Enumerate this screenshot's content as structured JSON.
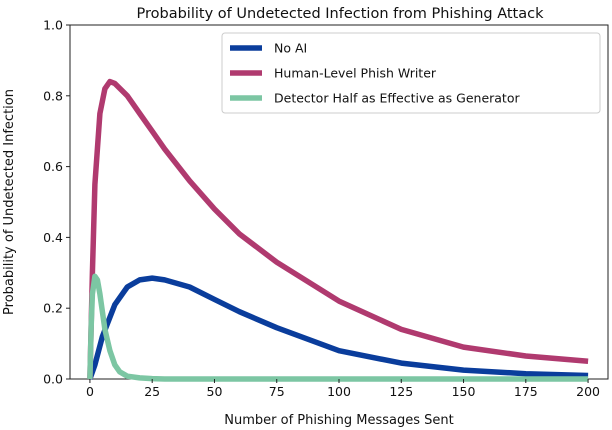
{
  "chart_data": {
    "type": "line",
    "title": "Probability of Undetected Infection from Phishing Attack",
    "xlabel": "Number of Phishing Messages Sent",
    "ylabel": "Probability of Undetected Infection",
    "xlim": [
      -8,
      208
    ],
    "ylim": [
      0,
      1.0
    ],
    "xticks": [
      0,
      25,
      50,
      75,
      100,
      125,
      150,
      175,
      200
    ],
    "yticks": [
      0.0,
      0.2,
      0.4,
      0.6,
      0.8,
      1.0
    ],
    "ytick_labels": [
      "0.0",
      "0.2",
      "0.4",
      "0.6",
      "0.8",
      "1.0"
    ],
    "grid": false,
    "legend_position": "top-right",
    "series": [
      {
        "name": "No AI",
        "color": "#0a3d9c",
        "x": [
          0,
          2,
          5,
          10,
          15,
          20,
          25,
          30,
          40,
          50,
          60,
          75,
          100,
          125,
          150,
          175,
          200
        ],
        "y": [
          0.0,
          0.04,
          0.12,
          0.21,
          0.26,
          0.28,
          0.285,
          0.28,
          0.26,
          0.225,
          0.19,
          0.145,
          0.08,
          0.045,
          0.025,
          0.015,
          0.01
        ]
      },
      {
        "name": "Human-Level Phish Writer",
        "color": "#b03a6f",
        "x": [
          0,
          1,
          2,
          4,
          6,
          8,
          10,
          15,
          20,
          25,
          30,
          40,
          50,
          60,
          75,
          100,
          125,
          150,
          175,
          200
        ],
        "y": [
          0.0,
          0.3,
          0.55,
          0.75,
          0.82,
          0.84,
          0.835,
          0.8,
          0.75,
          0.7,
          0.65,
          0.56,
          0.48,
          0.41,
          0.33,
          0.22,
          0.14,
          0.09,
          0.065,
          0.05
        ]
      },
      {
        "name": "Detector Half as Effective as Generator",
        "color": "#7cc6a3",
        "x": [
          0,
          0.5,
          1,
          2,
          3,
          4,
          5,
          6,
          8,
          10,
          12,
          15,
          20,
          25,
          30,
          50,
          100,
          200
        ],
        "y": [
          0.0,
          0.15,
          0.24,
          0.29,
          0.28,
          0.24,
          0.19,
          0.14,
          0.08,
          0.04,
          0.02,
          0.008,
          0.003,
          0.001,
          0.0,
          0.0,
          0.0,
          0.0
        ]
      }
    ]
  }
}
